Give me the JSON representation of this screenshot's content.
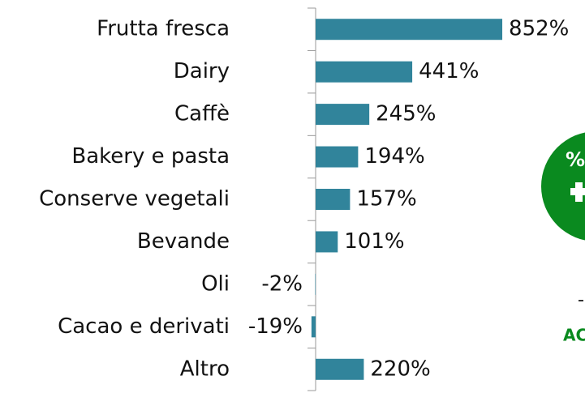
{
  "chart_data": {
    "type": "bar",
    "orientation": "horizontal",
    "categories": [
      "Frutta fresca",
      "Dairy",
      "Caffè",
      "Bakery e pasta",
      "Conserve vegetali",
      "Bevande",
      "Oli",
      "Cacao e derivati",
      "Altro"
    ],
    "values": [
      852,
      441,
      245,
      194,
      157,
      101,
      -2,
      -19,
      220
    ],
    "value_labels": [
      "852%",
      "441%",
      "245%",
      "194%",
      "157%",
      "101%",
      "-2%",
      "-19%",
      "220%"
    ],
    "color": "#31849b",
    "xlim": [
      -25,
      1000
    ],
    "badge": {
      "symbol": "%",
      "label": "AC",
      "color": "#0a8a1f"
    }
  }
}
